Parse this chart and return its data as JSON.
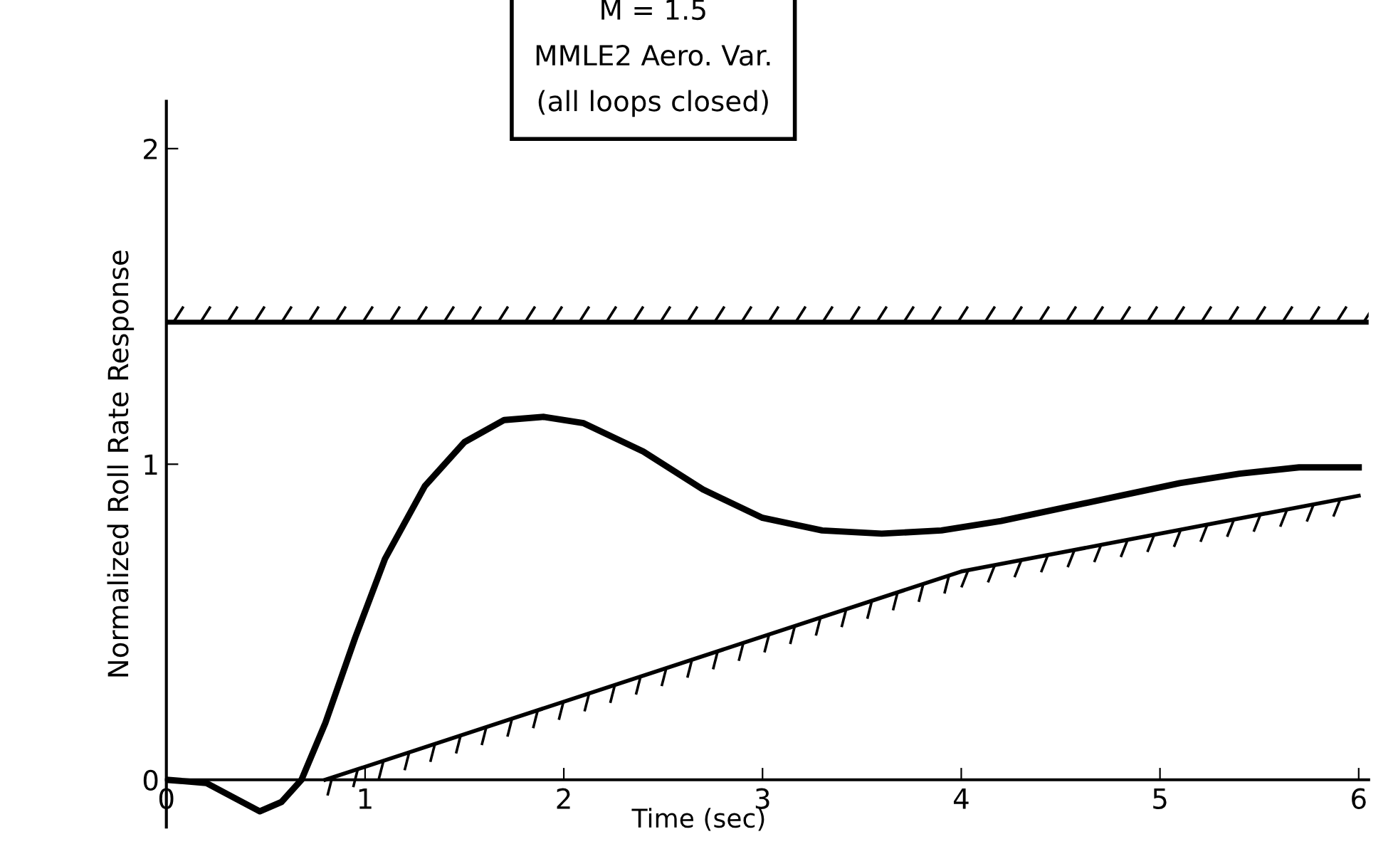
{
  "chart_data": {
    "type": "line",
    "xlabel": "Time (sec)",
    "ylabel": "Normalized Roll Rate Response",
    "annotations": [
      "M = 1.5\nMMLE2 Aero. Var.\n(all loops closed)"
    ],
    "xlim": [
      0,
      6.05
    ],
    "ylim": [
      -0.15,
      2.15
    ],
    "xticks": [
      0,
      1,
      2,
      3,
      4,
      5,
      6
    ],
    "yticks": [
      0,
      1,
      2
    ],
    "grid": false,
    "legend": false,
    "line_style": "solid",
    "marker": "none",
    "ref_lines": [
      {
        "axis": "y",
        "value": 1.45,
        "color": "#000000"
      }
    ],
    "series": [
      {
        "color": "#000000",
        "x": [
          0,
          0.2,
          0.35,
          0.47,
          0.58,
          0.68,
          0.8,
          0.95,
          1.1,
          1.3,
          1.5,
          1.7,
          1.9,
          2.1,
          2.4,
          2.7,
          3.0,
          3.3,
          3.6,
          3.9,
          4.2,
          4.5,
          4.8,
          5.1,
          5.4,
          5.7,
          6.0
        ],
        "values": [
          0,
          -0.01,
          -0.06,
          -0.1,
          -0.07,
          0,
          0.18,
          0.45,
          0.7,
          0.93,
          1.07,
          1.14,
          1.15,
          1.13,
          1.04,
          0.92,
          0.83,
          0.79,
          0.78,
          0.79,
          0.82,
          0.86,
          0.9,
          0.94,
          0.97,
          0.99,
          0.99
        ]
      },
      {
        "color": "#000000",
        "x": [
          0.8,
          4,
          6
        ],
        "values": [
          0,
          0.66,
          0.9
        ]
      }
    ]
  }
}
